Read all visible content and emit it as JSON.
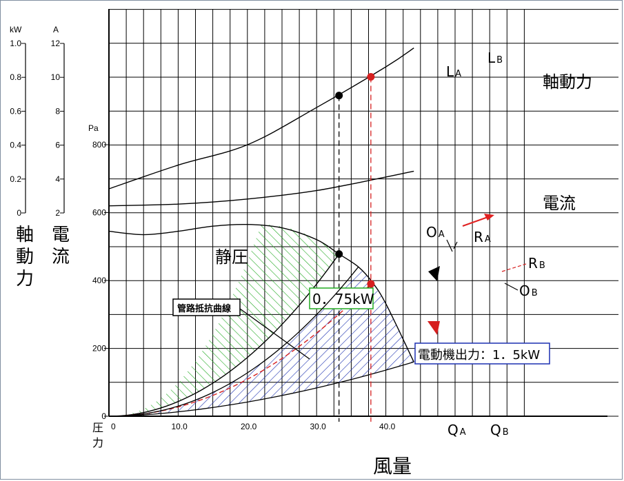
{
  "chart_data": {
    "type": "line",
    "xlabel": "風量",
    "x_ticks": [
      "0",
      "10.0",
      "20.0",
      "30.0",
      "40.0"
    ],
    "xlim": [
      0,
      48
    ],
    "pressure_axis": {
      "unit": "Pa",
      "ticks": [
        "0",
        "200",
        "400",
        "600",
        "800"
      ],
      "ylim": [
        0,
        1100
      ]
    },
    "current_axis": {
      "unit": "A",
      "ticks": [
        "2",
        "4",
        "6",
        "8",
        "10",
        "12"
      ],
      "title": "電流"
    },
    "power_axis": {
      "unit": "kW",
      "ticks": [
        "0",
        "0.2",
        "0.4",
        "0.6",
        "0.8",
        "1.0"
      ],
      "title": "軸動力"
    },
    "y_axis_bottom_label": "圧力",
    "series": [
      {
        "name": "軸動力",
        "x": [
          0,
          10,
          20,
          30,
          40,
          44
        ],
        "y": [
          670,
          740,
          800,
          910,
          1030,
          1085
        ]
      },
      {
        "name": "電流",
        "x": [
          0,
          10,
          20,
          30,
          40,
          44
        ],
        "y": [
          620,
          625,
          640,
          665,
          705,
          722
        ]
      },
      {
        "name": "静圧",
        "x": [
          0,
          5,
          10,
          15,
          20,
          25,
          30,
          33.2,
          36,
          38,
          40,
          44
        ],
        "y": [
          545,
          535,
          545,
          560,
          565,
          555,
          520,
          478,
          440,
          395,
          330,
          160
        ]
      }
    ],
    "shaded_regions": [
      {
        "label": "0．75kW",
        "color": "#22aa22"
      },
      {
        "label": "電動機出力：1．5kW",
        "color": "#1a2fb0"
      }
    ],
    "annotations": {
      "system_curve_label": "管路抵抗曲線",
      "LA": "L",
      "LA_sub": "A",
      "LB": "L",
      "LB_sub": "B",
      "OA": "O",
      "OA_sub": "A",
      "OB": "O",
      "OB_sub": "B",
      "RA": "R",
      "RA_sub": "A",
      "RB": "R",
      "RB_sub": "B",
      "QA": "Q",
      "QA_sub": "A",
      "QB": "Q",
      "QB_sub": "B"
    },
    "points": {
      "QA": 33.2,
      "QB": 37.8,
      "OA_y": 478,
      "OB_y": 390,
      "LA_y": 945,
      "LB_y": 1000
    },
    "colors": {
      "red": "#d61f1f",
      "green": "#22aa22",
      "blue": "#1a2fb0",
      "grid": "#000000"
    }
  }
}
